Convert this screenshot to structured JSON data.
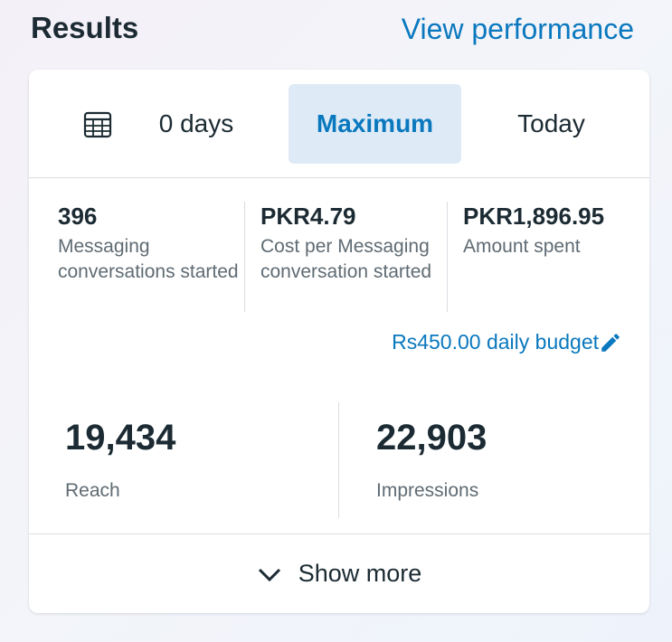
{
  "header": {
    "title": "Results",
    "link": "View performance"
  },
  "tabs": [
    "0 days",
    "Maximum",
    "Today"
  ],
  "metrics": [
    {
      "value": "396",
      "label": "Messaging conversations started"
    },
    {
      "value": "PKR4.79",
      "label": "Cost per Messaging conversation started"
    },
    {
      "value": "PKR1,896.95",
      "label": "Amount spent"
    }
  ],
  "budget": "Rs450.00 daily budget",
  "stats": [
    {
      "value": "19,434",
      "label": "Reach"
    },
    {
      "value": "22,903",
      "label": "Impressions"
    }
  ],
  "show_more": "Show more"
}
